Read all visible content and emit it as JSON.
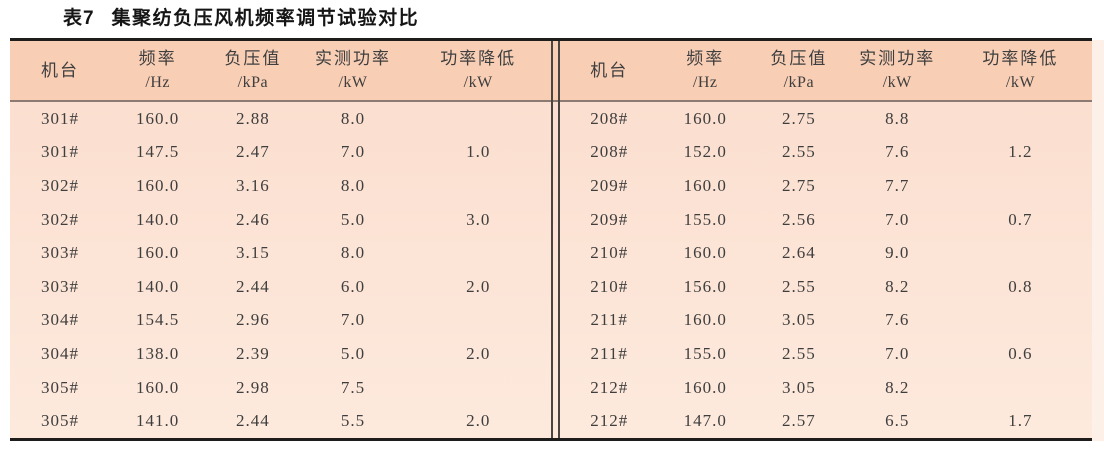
{
  "caption": {
    "label": "表7",
    "title": "集聚纺负压风机频率调节试验对比"
  },
  "columns": [
    {
      "label": "机台",
      "unit": ""
    },
    {
      "label": "频率",
      "unit": "/Hz"
    },
    {
      "label": "负压值",
      "unit": "/kPa"
    },
    {
      "label": "实测功率",
      "unit": "/kW"
    },
    {
      "label": "功率降低",
      "unit": "/kW"
    }
  ],
  "tables": {
    "left": {
      "rows": [
        [
          "301#",
          "160.0",
          "2.88",
          "8.0",
          ""
        ],
        [
          "301#",
          "147.5",
          "2.47",
          "7.0",
          "1.0"
        ],
        [
          "302#",
          "160.0",
          "3.16",
          "8.0",
          ""
        ],
        [
          "302#",
          "140.0",
          "2.46",
          "5.0",
          "3.0"
        ],
        [
          "303#",
          "160.0",
          "3.15",
          "8.0",
          ""
        ],
        [
          "303#",
          "140.0",
          "2.44",
          "6.0",
          "2.0"
        ],
        [
          "304#",
          "154.5",
          "2.96",
          "7.0",
          ""
        ],
        [
          "304#",
          "138.0",
          "2.39",
          "5.0",
          "2.0"
        ],
        [
          "305#",
          "160.0",
          "2.98",
          "7.5",
          ""
        ],
        [
          "305#",
          "141.0",
          "2.44",
          "5.5",
          "2.0"
        ]
      ]
    },
    "right": {
      "rows": [
        [
          "208#",
          "160.0",
          "2.75",
          "8.8",
          ""
        ],
        [
          "208#",
          "152.0",
          "2.55",
          "7.6",
          "1.2"
        ],
        [
          "209#",
          "160.0",
          "2.75",
          "7.7",
          ""
        ],
        [
          "209#",
          "155.0",
          "2.56",
          "7.0",
          "0.7"
        ],
        [
          "210#",
          "160.0",
          "2.64",
          "9.0",
          ""
        ],
        [
          "210#",
          "156.0",
          "2.55",
          "8.2",
          "0.8"
        ],
        [
          "211#",
          "160.0",
          "3.05",
          "7.6",
          ""
        ],
        [
          "211#",
          "155.0",
          "2.55",
          "7.0",
          "0.6"
        ],
        [
          "212#",
          "160.0",
          "3.05",
          "8.2",
          ""
        ],
        [
          "212#",
          "147.0",
          "2.57",
          "6.5",
          "1.7"
        ]
      ]
    }
  },
  "colors": {
    "header_bg": "#f8ceb5",
    "body_bg_top": "#fbdfd0",
    "body_bg_bottom": "#fdeadd",
    "outer_border": "#1e1d1b",
    "header_rule": "#8c7b73",
    "divider_line": "#4b4542",
    "text": "#3e3e3e",
    "caption_color": "#151515",
    "page_bg": "#ffffff",
    "right_strip": "#fdf0e8"
  }
}
